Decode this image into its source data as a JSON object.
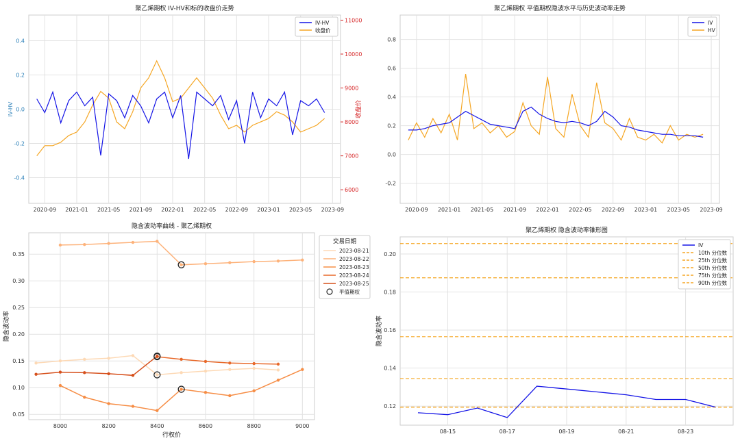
{
  "charts": [
    {
      "type": "line",
      "title": "聚乙烯期权 IV-HV和标的收盘价走势",
      "ylabel": "IV-HV",
      "y2label": "收盘价",
      "x_ticks": [
        "2020-09",
        "2021-01",
        "2021-05",
        "2021-09",
        "2022-01",
        "2022-05",
        "2022-09",
        "2023-01",
        "2023-05",
        "2023-09"
      ],
      "y_ticks": [
        "-0.4",
        "-0.2",
        "0.0",
        "0.2",
        "0.4"
      ],
      "y2_ticks": [
        "6000",
        "7000",
        "8000",
        "9000",
        "10000",
        "11000"
      ],
      "ylim": [
        -0.55,
        0.55
      ],
      "y2lim": [
        5600,
        11150
      ],
      "legend": [
        "IV-HV",
        "收盘价"
      ],
      "legend_position": "upper right",
      "colors": [
        "#1414e6",
        "#f5a623"
      ],
      "series": [
        {
          "name": "IV-HV",
          "x": [
            "2020-08",
            "2020-09",
            "2020-10",
            "2020-11",
            "2020-12",
            "2021-01",
            "2021-02",
            "2021-03",
            "2021-04",
            "2021-05",
            "2021-06",
            "2021-07",
            "2021-08",
            "2021-09",
            "2021-10",
            "2021-11",
            "2021-12",
            "2022-01",
            "2022-02",
            "2022-03",
            "2022-04",
            "2022-05",
            "2022-06",
            "2022-07",
            "2022-08",
            "2022-09",
            "2022-10",
            "2022-11",
            "2022-12",
            "2023-01",
            "2023-02",
            "2023-03",
            "2023-04",
            "2023-05",
            "2023-06",
            "2023-07",
            "2023-08"
          ],
          "values": [
            0.06,
            -0.02,
            0.1,
            -0.08,
            0.05,
            0.1,
            0.02,
            0.07,
            -0.27,
            0.09,
            0.05,
            -0.05,
            0.08,
            0.02,
            -0.08,
            0.06,
            0.1,
            -0.05,
            0.08,
            -0.29,
            0.1,
            0.06,
            0.02,
            0.08,
            -0.06,
            0.05,
            -0.2,
            0.1,
            -0.05,
            0.06,
            0.02,
            0.1,
            -0.15,
            0.05,
            0.02,
            0.06,
            -0.02
          ]
        },
        {
          "name": "收盘价",
          "x": [
            "2020-08",
            "2020-09",
            "2020-10",
            "2020-11",
            "2020-12",
            "2021-01",
            "2021-02",
            "2021-03",
            "2021-04",
            "2021-05",
            "2021-06",
            "2021-07",
            "2021-08",
            "2021-09",
            "2021-10",
            "2021-11",
            "2021-12",
            "2022-01",
            "2022-02",
            "2022-03",
            "2022-04",
            "2022-05",
            "2022-06",
            "2022-07",
            "2022-08",
            "2022-09",
            "2022-10",
            "2022-11",
            "2022-12",
            "2023-01",
            "2023-02",
            "2023-03",
            "2023-04",
            "2023-05",
            "2023-06",
            "2023-07",
            "2023-08"
          ],
          "values": [
            7000,
            7300,
            7300,
            7400,
            7600,
            7700,
            8000,
            8500,
            8900,
            8700,
            8000,
            7800,
            8300,
            9000,
            9300,
            9800,
            9300,
            8600,
            8700,
            9000,
            9300,
            9000,
            8700,
            8200,
            7800,
            7900,
            7700,
            7900,
            8000,
            8100,
            8300,
            8200,
            8000,
            7700,
            7800,
            7900,
            8100
          ]
        }
      ]
    },
    {
      "type": "line",
      "title": "聚乙烯期权 平值期权隐波水平与历史波动率走势",
      "x_ticks": [
        "2020-09",
        "2021-01",
        "2021-05",
        "2021-09",
        "2022-01",
        "2022-05",
        "2022-09",
        "2023-01",
        "2023-05",
        "2023-09"
      ],
      "y_ticks": [
        "-0.2",
        "0.0",
        "0.2",
        "0.4",
        "0.6",
        "0.8"
      ],
      "ylim": [
        -0.34,
        0.97
      ],
      "legend": [
        "IV",
        "HV"
      ],
      "legend_position": "upper right",
      "colors": [
        "#1414e6",
        "#f5a623"
      ],
      "series": [
        {
          "name": "IV",
          "x": [
            "2020-08",
            "2020-09",
            "2020-10",
            "2020-11",
            "2020-12",
            "2021-01",
            "2021-02",
            "2021-03",
            "2021-04",
            "2021-05",
            "2021-06",
            "2021-07",
            "2021-08",
            "2021-09",
            "2021-10",
            "2021-11",
            "2021-12",
            "2022-01",
            "2022-02",
            "2022-03",
            "2022-04",
            "2022-05",
            "2022-06",
            "2022-07",
            "2022-08",
            "2022-09",
            "2022-10",
            "2022-11",
            "2022-12",
            "2023-01",
            "2023-02",
            "2023-03",
            "2023-04",
            "2023-05",
            "2023-06",
            "2023-07",
            "2023-08"
          ],
          "values": [
            0.17,
            0.17,
            0.18,
            0.2,
            0.21,
            0.22,
            0.26,
            0.3,
            0.27,
            0.24,
            0.21,
            0.2,
            0.19,
            0.18,
            0.3,
            0.33,
            0.28,
            0.25,
            0.23,
            0.22,
            0.23,
            0.22,
            0.2,
            0.23,
            0.3,
            0.26,
            0.2,
            0.19,
            0.17,
            0.16,
            0.15,
            0.14,
            0.14,
            0.13,
            0.13,
            0.13,
            0.12
          ]
        },
        {
          "name": "HV",
          "x": [
            "2020-08",
            "2020-09",
            "2020-10",
            "2020-11",
            "2020-12",
            "2021-01",
            "2021-02",
            "2021-03",
            "2021-04",
            "2021-05",
            "2021-06",
            "2021-07",
            "2021-08",
            "2021-09",
            "2021-10",
            "2021-11",
            "2021-12",
            "2022-01",
            "2022-02",
            "2022-03",
            "2022-04",
            "2022-05",
            "2022-06",
            "2022-07",
            "2022-08",
            "2022-09",
            "2022-10",
            "2022-11",
            "2022-12",
            "2023-01",
            "2023-02",
            "2023-03",
            "2023-04",
            "2023-05",
            "2023-06",
            "2023-07",
            "2023-08"
          ],
          "values": [
            0.1,
            0.22,
            0.12,
            0.25,
            0.15,
            0.28,
            0.1,
            0.56,
            0.18,
            0.22,
            0.15,
            0.2,
            0.12,
            0.16,
            0.36,
            0.2,
            0.14,
            0.54,
            0.18,
            0.12,
            0.42,
            0.2,
            0.12,
            0.5,
            0.22,
            0.18,
            0.1,
            0.25,
            0.12,
            0.1,
            0.14,
            0.08,
            0.2,
            0.1,
            0.14,
            0.12,
            0.14
          ]
        }
      ]
    },
    {
      "type": "line",
      "title": "隐含波动率曲线 - 聚乙烯期权",
      "xlabel": "行权价",
      "ylabel": "隐含波动率",
      "x_ticks": [
        "8000",
        "8200",
        "8400",
        "8600",
        "8800",
        "9000"
      ],
      "y_ticks": [
        "0.05",
        "0.10",
        "0.15",
        "0.20",
        "0.25",
        "0.30",
        "0.35"
      ],
      "xlim": [
        7870,
        9050
      ],
      "ylim": [
        0.04,
        0.39
      ],
      "legend_title": "交易日期",
      "legend_position": "upper right outside",
      "atm_label": "平值期权",
      "series": [
        {
          "name": "2023-08-21",
          "color": "#fdd9b5",
          "x": [
            7900,
            8000,
            8100,
            8200,
            8300,
            8400,
            8500,
            8600,
            8700,
            8800,
            8900
          ],
          "values": [
            0.146,
            0.15,
            0.153,
            0.155,
            0.16,
            0.124,
            0.128,
            0.131,
            0.134,
            0.136,
            0.133
          ],
          "atm": [
            8400,
            0.124
          ]
        },
        {
          "name": "2023-08-22",
          "color": "#fdb27a",
          "x": [
            8000,
            8100,
            8200,
            8300,
            8400,
            8500,
            8600,
            8700,
            8800,
            8900,
            9000
          ],
          "values": [
            0.367,
            0.368,
            0.37,
            0.372,
            0.374,
            0.33,
            0.332,
            0.334,
            0.336,
            0.337,
            0.339
          ],
          "atm": [
            8500,
            0.33
          ]
        },
        {
          "name": "2023-08-23",
          "color": "#f68d45",
          "x": [
            8000,
            8100,
            8200,
            8300,
            8400,
            8500,
            8600,
            8700,
            8800,
            8900,
            9000
          ],
          "values": [
            0.104,
            0.082,
            0.07,
            0.065,
            0.057,
            0.097,
            0.091,
            0.085,
            0.094,
            0.114,
            0.134
          ],
          "atm": [
            8500,
            0.097
          ]
        },
        {
          "name": "2023-08-24",
          "color": "#e8692a",
          "x": [
            8400,
            8500,
            8600,
            8700,
            8800,
            8900
          ],
          "values": [
            0.158,
            0.153,
            0.149,
            0.146,
            0.145,
            0.144
          ],
          "atm": [
            8400,
            0.158
          ]
        },
        {
          "name": "2023-08-25",
          "color": "#d6501c",
          "x": [
            7900,
            8000,
            8100,
            8200,
            8300,
            8400
          ],
          "values": [
            0.125,
            0.129,
            0.128,
            0.126,
            0.123,
            0.159
          ],
          "atm": [
            8400,
            0.159
          ]
        }
      ]
    },
    {
      "type": "line",
      "title": "聚乙烯期权 隐含波动率锥形图",
      "ylabel": "隐含波动率",
      "x_ticks": [
        "08-15",
        "08-17",
        "08-19",
        "08-21",
        "08-23"
      ],
      "y_ticks": [
        "0.12",
        "0.14",
        "0.16",
        "0.18",
        "0.20"
      ],
      "ylim": [
        0.11,
        0.209
      ],
      "series": [
        {
          "name": "IV",
          "color": "#1414e6",
          "x": [
            "08-14",
            "08-15",
            "08-16",
            "08-17",
            "08-18",
            "08-19",
            "08-20",
            "08-21",
            "08-22",
            "08-23",
            "08-24"
          ],
          "values": [
            0.1165,
            0.1155,
            0.119,
            0.114,
            0.1305,
            0.129,
            0.1275,
            0.126,
            0.1235,
            0.1235,
            0.1195
          ]
        }
      ],
      "percentiles": [
        {
          "name": "10th 分位数",
          "value": 0.1195
        },
        {
          "name": "25th 分位数",
          "value": 0.1195
        },
        {
          "name": "50th 分位数",
          "value": 0.1345
        },
        {
          "name": "75th 分位数",
          "value": 0.1565
        },
        {
          "name": "90th 分位数",
          "value": 0.1875
        },
        {
          "name": "",
          "value": 0.2055
        }
      ],
      "percentile_color": "#f5a623",
      "legend_position": "upper right"
    }
  ]
}
